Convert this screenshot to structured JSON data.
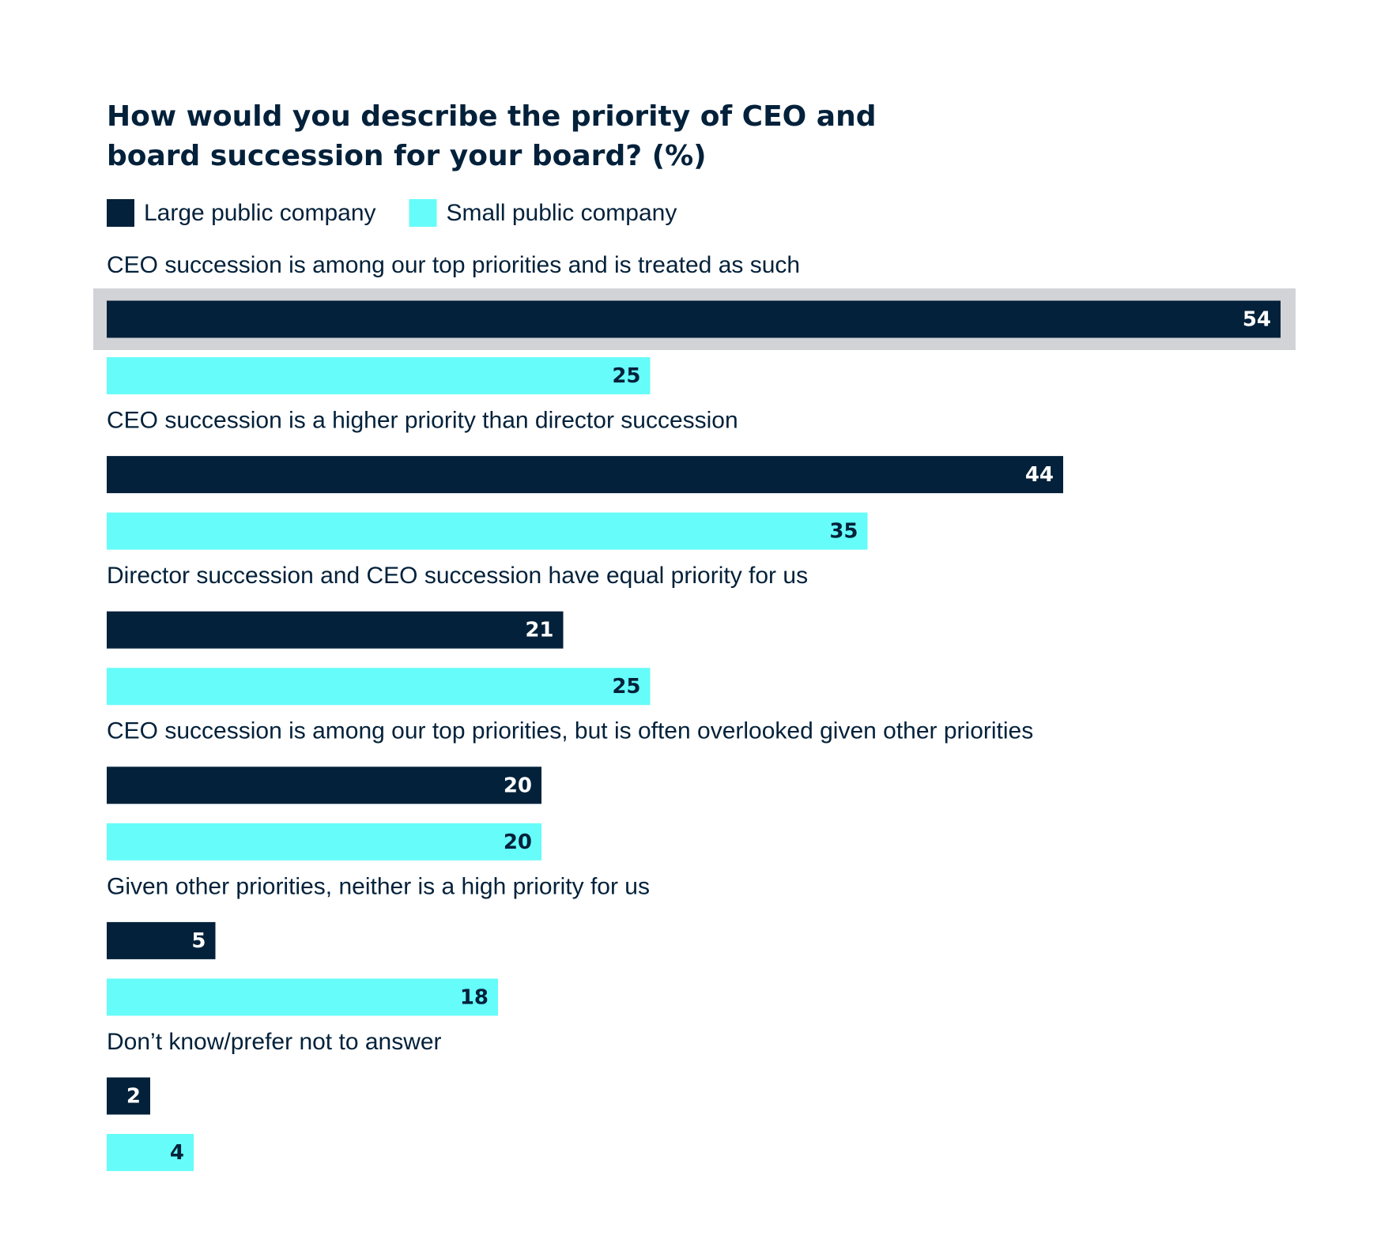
{
  "chart_data": {
    "type": "hbar",
    "title": [
      "How would you describe the priority of CEO and",
      "board succession for your board? (%)"
    ],
    "categories": [
      "CEO succession is among our top priorities and is treated as such",
      "CEO succession is a higher priority than director succession",
      "Director succession and CEO succession have equal priority for us",
      "CEO succession is among our top priorities, but is often overlooked given other priorities",
      "Given other priorities, neither is a high priority for us",
      "Don’t know/prefer not to answer"
    ],
    "series": [
      {
        "name": "Large public company",
        "color": "#03213a",
        "label_color": "#ffffff",
        "values": [
          54,
          44,
          21,
          20,
          5,
          2
        ]
      },
      {
        "name": "Small public company",
        "color": "#66fcf9",
        "label_color": "#03213a",
        "values": [
          25,
          35,
          25,
          20,
          18,
          4
        ]
      }
    ]
  }
}
